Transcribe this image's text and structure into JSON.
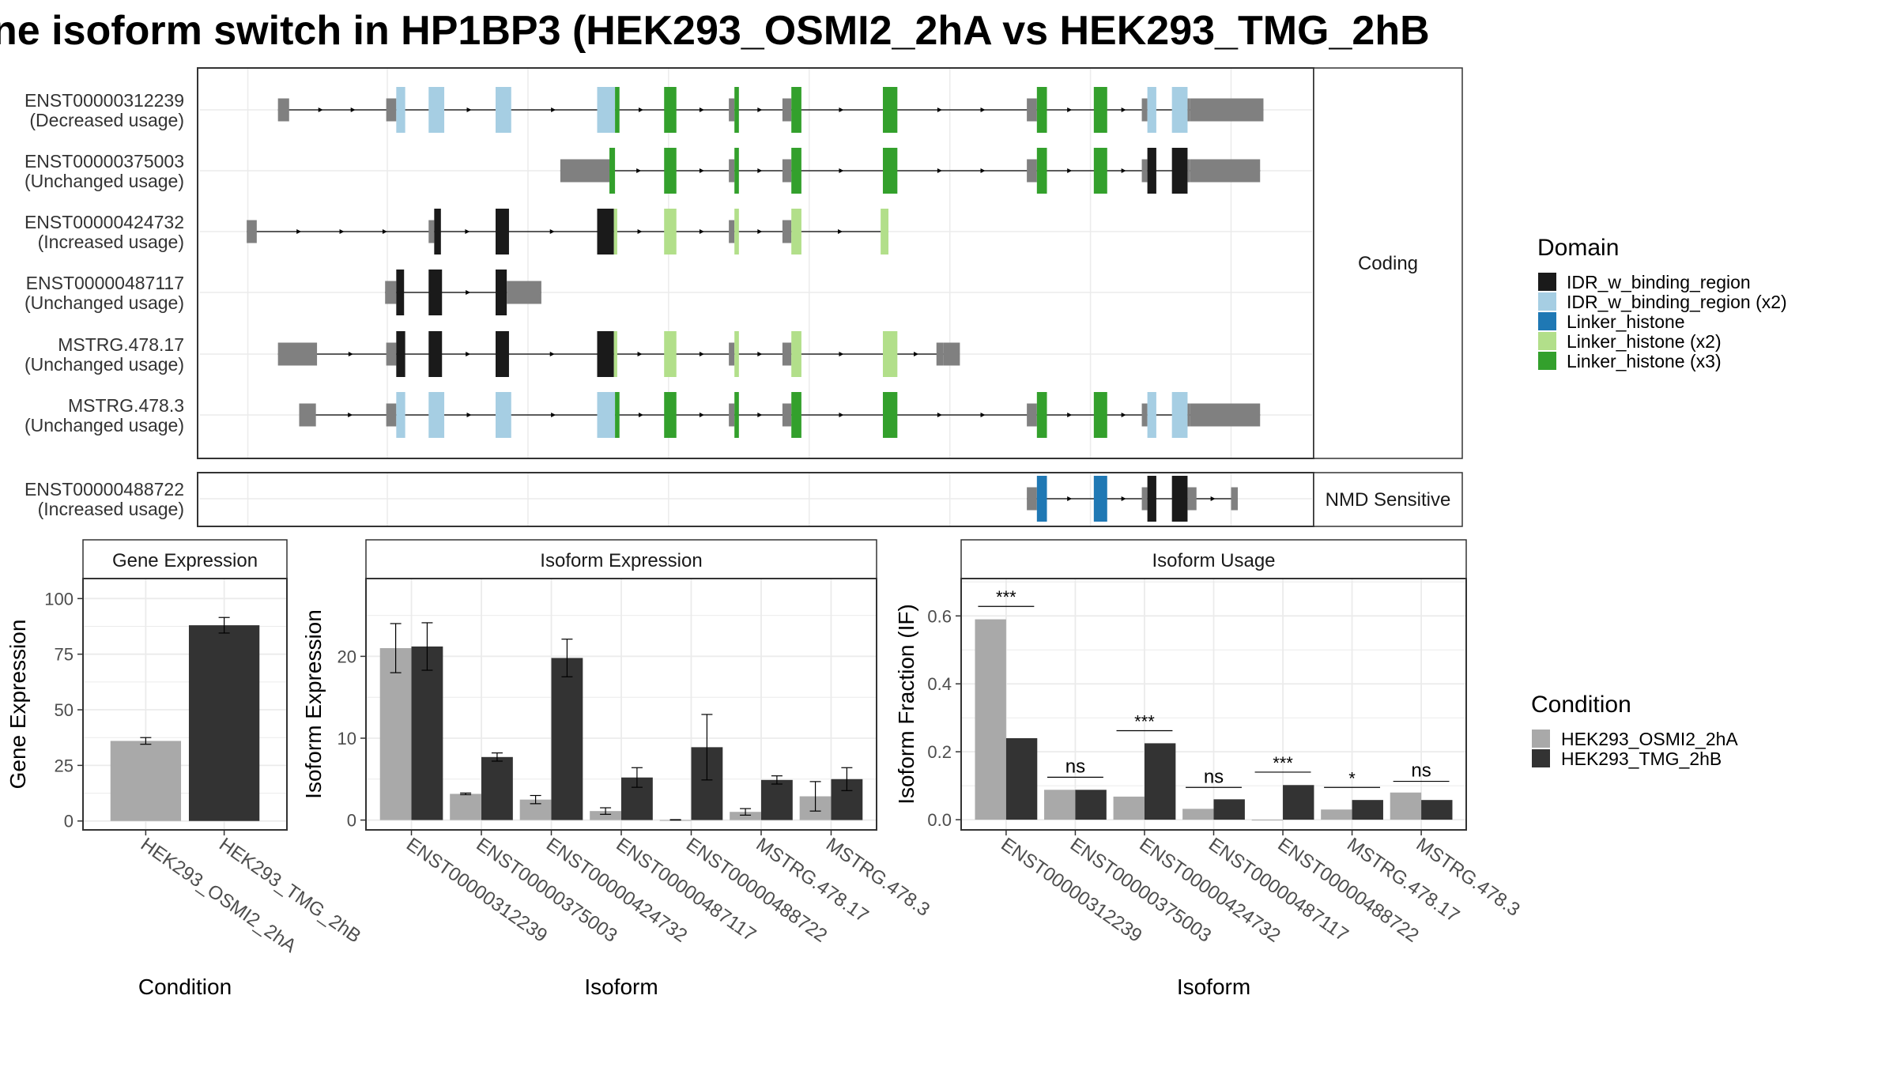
{
  "title": "ne isoform switch in HP1BP3 (HEK293_OSMI2_2hA vs HEK293_TMG_2hB",
  "colors": {
    "cond1": "#a9a9a9",
    "cond2": "#333333",
    "utr": "#808080",
    "panel_border": "#333333",
    "strip_fill": "#ffffff",
    "grid": "#ebebeb"
  },
  "structure": {
    "coding_label": "Coding",
    "nmd_label": "NMD Sensitive",
    "domain_legend_title": "Domain",
    "domains": [
      {
        "name": "IDR_w_binding_region",
        "color": "#1a1a1a"
      },
      {
        "name": "IDR_w_binding_region (x2)",
        "color": "#a6cee3"
      },
      {
        "name": "Linker_histone",
        "color": "#1f78b4"
      },
      {
        "name": "Linker_histone (x2)",
        "color": "#b2df8a"
      },
      {
        "name": "Linker_histone (x3)",
        "color": "#33a02c"
      }
    ],
    "coding_isoforms": [
      {
        "id": "ENST00000312239",
        "usage": "(Decreased usage)",
        "span": [
          0.072,
          0.955
        ],
        "exons": [
          {
            "s": 0.072,
            "e": 0.082,
            "t": "utr"
          },
          {
            "s": 0.169,
            "e": 0.178,
            "t": "utr"
          },
          {
            "s": 0.178,
            "e": 0.186,
            "t": "IDR_w_binding_region (x2)"
          },
          {
            "s": 0.207,
            "e": 0.221,
            "t": "IDR_w_binding_region (x2)"
          },
          {
            "s": 0.267,
            "e": 0.281,
            "t": "IDR_w_binding_region (x2)"
          },
          {
            "s": 0.358,
            "e": 0.374,
            "t": "IDR_w_binding_region (x2)"
          },
          {
            "s": 0.374,
            "e": 0.378,
            "t": "Linker_histone (x3)"
          },
          {
            "s": 0.418,
            "e": 0.429,
            "t": "Linker_histone (x3)"
          },
          {
            "s": 0.476,
            "e": 0.481,
            "t": "utr"
          },
          {
            "s": 0.481,
            "e": 0.485,
            "t": "Linker_histone (x3)"
          },
          {
            "s": 0.524,
            "e": 0.532,
            "t": "utr"
          },
          {
            "s": 0.532,
            "e": 0.541,
            "t": "Linker_histone (x3)"
          },
          {
            "s": 0.614,
            "e": 0.627,
            "t": "Linker_histone (x3)"
          },
          {
            "s": 0.743,
            "e": 0.752,
            "t": "utr"
          },
          {
            "s": 0.752,
            "e": 0.761,
            "t": "Linker_histone (x3)"
          },
          {
            "s": 0.803,
            "e": 0.815,
            "t": "Linker_histone (x3)"
          },
          {
            "s": 0.846,
            "e": 0.851,
            "t": "utr"
          },
          {
            "s": 0.851,
            "e": 0.859,
            "t": "IDR_w_binding_region (x2)"
          },
          {
            "s": 0.873,
            "e": 0.887,
            "t": "IDR_w_binding_region (x2)"
          },
          {
            "s": 0.887,
            "e": 0.889,
            "t": "utr"
          },
          {
            "s": 0.889,
            "e": 0.955,
            "t": "utr"
          }
        ]
      },
      {
        "id": "ENST00000375003",
        "usage": "(Unchanged usage)",
        "span": [
          0.325,
          0.952
        ],
        "exons": [
          {
            "s": 0.325,
            "e": 0.369,
            "t": "utr"
          },
          {
            "s": 0.369,
            "e": 0.374,
            "t": "Linker_histone (x3)"
          },
          {
            "s": 0.418,
            "e": 0.429,
            "t": "Linker_histone (x3)"
          },
          {
            "s": 0.476,
            "e": 0.481,
            "t": "utr"
          },
          {
            "s": 0.481,
            "e": 0.485,
            "t": "Linker_histone (x3)"
          },
          {
            "s": 0.524,
            "e": 0.532,
            "t": "utr"
          },
          {
            "s": 0.532,
            "e": 0.541,
            "t": "Linker_histone (x3)"
          },
          {
            "s": 0.614,
            "e": 0.627,
            "t": "Linker_histone (x3)"
          },
          {
            "s": 0.743,
            "e": 0.752,
            "t": "utr"
          },
          {
            "s": 0.752,
            "e": 0.761,
            "t": "Linker_histone (x3)"
          },
          {
            "s": 0.803,
            "e": 0.815,
            "t": "Linker_histone (x3)"
          },
          {
            "s": 0.846,
            "e": 0.851,
            "t": "utr"
          },
          {
            "s": 0.851,
            "e": 0.859,
            "t": "IDR_w_binding_region"
          },
          {
            "s": 0.873,
            "e": 0.887,
            "t": "IDR_w_binding_region"
          },
          {
            "s": 0.887,
            "e": 0.889,
            "t": "utr"
          },
          {
            "s": 0.889,
            "e": 0.952,
            "t": "utr"
          }
        ]
      },
      {
        "id": "ENST00000424732",
        "usage": "(Increased usage)",
        "span": [
          0.044,
          0.619
        ],
        "exons": [
          {
            "s": 0.044,
            "e": 0.053,
            "t": "utr"
          },
          {
            "s": 0.207,
            "e": 0.212,
            "t": "utr"
          },
          {
            "s": 0.212,
            "e": 0.218,
            "t": "IDR_w_binding_region"
          },
          {
            "s": 0.267,
            "e": 0.279,
            "t": "IDR_w_binding_region"
          },
          {
            "s": 0.358,
            "e": 0.373,
            "t": "IDR_w_binding_region"
          },
          {
            "s": 0.373,
            "e": 0.376,
            "t": "Linker_histone (x2)"
          },
          {
            "s": 0.418,
            "e": 0.429,
            "t": "Linker_histone (x2)"
          },
          {
            "s": 0.476,
            "e": 0.481,
            "t": "utr"
          },
          {
            "s": 0.481,
            "e": 0.485,
            "t": "Linker_histone (x2)"
          },
          {
            "s": 0.524,
            "e": 0.532,
            "t": "utr"
          },
          {
            "s": 0.532,
            "e": 0.541,
            "t": "Linker_histone (x2)"
          },
          {
            "s": 0.612,
            "e": 0.619,
            "t": "Linker_histone (x2)"
          }
        ]
      },
      {
        "id": "ENST00000487117",
        "usage": "(Unchanged usage)",
        "span": [
          0.168,
          0.308
        ],
        "exons": [
          {
            "s": 0.168,
            "e": 0.178,
            "t": "utr"
          },
          {
            "s": 0.178,
            "e": 0.185,
            "t": "IDR_w_binding_region"
          },
          {
            "s": 0.207,
            "e": 0.219,
            "t": "IDR_w_binding_region"
          },
          {
            "s": 0.267,
            "e": 0.277,
            "t": "IDR_w_binding_region"
          },
          {
            "s": 0.277,
            "e": 0.308,
            "t": "utr"
          }
        ]
      },
      {
        "id": "MSTRG.478.17",
        "usage": "(Unchanged usage)",
        "span": [
          0.072,
          0.679
        ],
        "exons": [
          {
            "s": 0.072,
            "e": 0.107,
            "t": "utr"
          },
          {
            "s": 0.169,
            "e": 0.178,
            "t": "utr"
          },
          {
            "s": 0.178,
            "e": 0.186,
            "t": "IDR_w_binding_region"
          },
          {
            "s": 0.207,
            "e": 0.219,
            "t": "IDR_w_binding_region"
          },
          {
            "s": 0.267,
            "e": 0.279,
            "t": "IDR_w_binding_region"
          },
          {
            "s": 0.358,
            "e": 0.373,
            "t": "IDR_w_binding_region"
          },
          {
            "s": 0.373,
            "e": 0.376,
            "t": "Linker_histone (x2)"
          },
          {
            "s": 0.418,
            "e": 0.429,
            "t": "Linker_histone (x2)"
          },
          {
            "s": 0.476,
            "e": 0.481,
            "t": "utr"
          },
          {
            "s": 0.481,
            "e": 0.485,
            "t": "Linker_histone (x2)"
          },
          {
            "s": 0.524,
            "e": 0.532,
            "t": "utr"
          },
          {
            "s": 0.532,
            "e": 0.541,
            "t": "Linker_histone (x2)"
          },
          {
            "s": 0.614,
            "e": 0.627,
            "t": "Linker_histone (x2)"
          },
          {
            "s": 0.662,
            "e": 0.668,
            "t": "utr"
          },
          {
            "s": 0.668,
            "e": 0.683,
            "t": "utr"
          }
        ]
      },
      {
        "id": "MSTRG.478.3",
        "usage": "(Unchanged usage)",
        "span": [
          0.091,
          0.952
        ],
        "exons": [
          {
            "s": 0.091,
            "e": 0.106,
            "t": "utr"
          },
          {
            "s": 0.169,
            "e": 0.178,
            "t": "utr"
          },
          {
            "s": 0.178,
            "e": 0.186,
            "t": "IDR_w_binding_region (x2)"
          },
          {
            "s": 0.207,
            "e": 0.221,
            "t": "IDR_w_binding_region (x2)"
          },
          {
            "s": 0.267,
            "e": 0.281,
            "t": "IDR_w_binding_region (x2)"
          },
          {
            "s": 0.358,
            "e": 0.374,
            "t": "IDR_w_binding_region (x2)"
          },
          {
            "s": 0.374,
            "e": 0.378,
            "t": "Linker_histone (x3)"
          },
          {
            "s": 0.418,
            "e": 0.429,
            "t": "Linker_histone (x3)"
          },
          {
            "s": 0.476,
            "e": 0.481,
            "t": "utr"
          },
          {
            "s": 0.481,
            "e": 0.485,
            "t": "Linker_histone (x3)"
          },
          {
            "s": 0.524,
            "e": 0.532,
            "t": "utr"
          },
          {
            "s": 0.532,
            "e": 0.541,
            "t": "Linker_histone (x3)"
          },
          {
            "s": 0.614,
            "e": 0.627,
            "t": "Linker_histone (x3)"
          },
          {
            "s": 0.743,
            "e": 0.752,
            "t": "utr"
          },
          {
            "s": 0.752,
            "e": 0.761,
            "t": "Linker_histone (x3)"
          },
          {
            "s": 0.803,
            "e": 0.815,
            "t": "Linker_histone (x3)"
          },
          {
            "s": 0.846,
            "e": 0.851,
            "t": "utr"
          },
          {
            "s": 0.851,
            "e": 0.859,
            "t": "IDR_w_binding_region (x2)"
          },
          {
            "s": 0.873,
            "e": 0.887,
            "t": "IDR_w_binding_region (x2)"
          },
          {
            "s": 0.887,
            "e": 0.889,
            "t": "utr"
          },
          {
            "s": 0.889,
            "e": 0.952,
            "t": "utr"
          }
        ]
      }
    ],
    "nmd_isoforms": [
      {
        "id": "ENST00000488722",
        "usage": "(Increased usage)",
        "span": [
          0.743,
          0.932
        ],
        "exons": [
          {
            "s": 0.743,
            "e": 0.752,
            "t": "utr"
          },
          {
            "s": 0.752,
            "e": 0.761,
            "t": "Linker_histone"
          },
          {
            "s": 0.803,
            "e": 0.815,
            "t": "Linker_histone"
          },
          {
            "s": 0.846,
            "e": 0.851,
            "t": "utr"
          },
          {
            "s": 0.851,
            "e": 0.859,
            "t": "IDR_w_binding_region"
          },
          {
            "s": 0.873,
            "e": 0.887,
            "t": "IDR_w_binding_region"
          },
          {
            "s": 0.887,
            "e": 0.895,
            "t": "utr"
          },
          {
            "s": 0.926,
            "e": 0.932,
            "t": "utr"
          }
        ]
      }
    ]
  },
  "condition_legend": {
    "title": "Condition",
    "items": [
      {
        "name": "HEK293_OSMI2_2hA",
        "color": "#a9a9a9"
      },
      {
        "name": "HEK293_TMG_2hB",
        "color": "#333333"
      }
    ]
  },
  "chart_data": [
    {
      "type": "bar",
      "title": "Gene Expression",
      "xlabel": "Condition",
      "ylabel": "Gene Expression",
      "categories": [
        "HEK293_OSMI2_2hA",
        "HEK293_TMG_2hB"
      ],
      "values": [
        36,
        88
      ],
      "errors": [
        1.5,
        3.5
      ],
      "bar_colors": [
        "#a9a9a9",
        "#333333"
      ],
      "ylim": [
        -4,
        109
      ],
      "yticks": [
        0,
        25,
        50,
        75,
        100
      ]
    },
    {
      "type": "bar",
      "title": "Isoform Expression",
      "xlabel": "Isoform",
      "ylabel": "Isoform Expression",
      "categories": [
        "ENST00000312239",
        "ENST00000375003",
        "ENST00000424732",
        "ENST00000487117",
        "ENST00000488722",
        "MSTRG.478.17",
        "MSTRG.478.3"
      ],
      "series": [
        {
          "name": "HEK293_OSMI2_2hA",
          "values": [
            21.0,
            3.2,
            2.5,
            1.1,
            0.0,
            1.0,
            2.9
          ],
          "errors": [
            3.0,
            0.1,
            0.5,
            0.4,
            0.05,
            0.4,
            1.8
          ]
        },
        {
          "name": "HEK293_TMG_2hB",
          "values": [
            21.2,
            7.7,
            19.8,
            5.2,
            8.9,
            4.9,
            5.0
          ],
          "errors": [
            2.9,
            0.5,
            2.3,
            1.2,
            4.0,
            0.5,
            1.4
          ]
        }
      ],
      "ylim": [
        -1.2,
        29.5
      ],
      "yticks": [
        0,
        10,
        20
      ]
    },
    {
      "type": "bar",
      "title": "Isoform Usage",
      "xlabel": "Isoform",
      "ylabel": "Isoform Fraction (IF)",
      "categories": [
        "ENST00000312239",
        "ENST00000375003",
        "ENST00000424732",
        "ENST00000487117",
        "ENST00000488722",
        "MSTRG.478.17",
        "MSTRG.478.3"
      ],
      "series": [
        {
          "name": "HEK293_OSMI2_2hA",
          "values": [
            0.59,
            0.088,
            0.068,
            0.032,
            0.0,
            0.03,
            0.08
          ]
        },
        {
          "name": "HEK293_TMG_2hB",
          "values": [
            0.24,
            0.088,
            0.225,
            0.06,
            0.102,
            0.058,
            0.058
          ]
        }
      ],
      "significance": [
        "***",
        "ns",
        "***",
        "ns",
        "***",
        "*",
        "ns"
      ],
      "sig_heights": [
        0.628,
        0.125,
        0.262,
        0.095,
        0.14,
        0.095,
        0.113
      ],
      "ylim": [
        -0.03,
        0.71
      ],
      "yticks": [
        0.0,
        0.2,
        0.4,
        0.6
      ]
    }
  ]
}
